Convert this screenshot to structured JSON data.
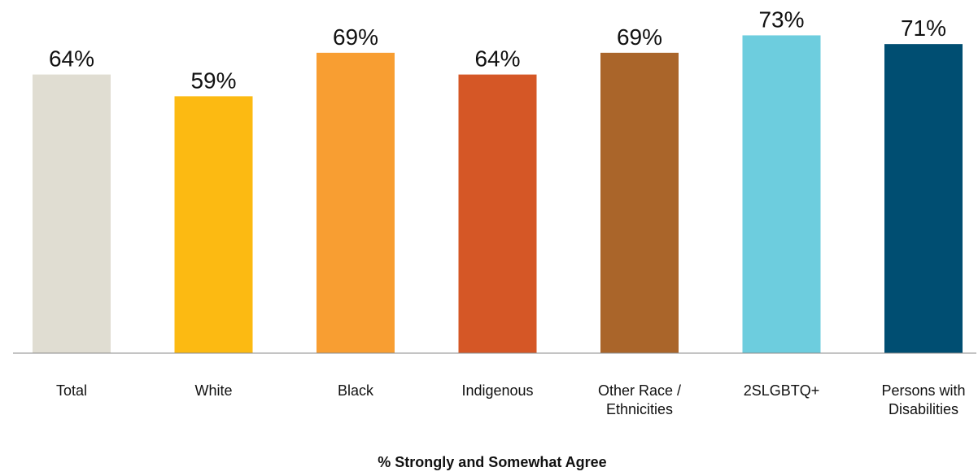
{
  "chart_data": {
    "type": "bar",
    "categories": [
      [
        "Total"
      ],
      [
        "White"
      ],
      [
        "Black"
      ],
      [
        "Indigenous"
      ],
      [
        "Other Race /",
        "Ethnicities"
      ],
      [
        "2SLGBTQ+"
      ],
      [
        "Persons with",
        "Disabilities"
      ]
    ],
    "values": [
      64,
      59,
      69,
      64,
      69,
      73,
      71
    ],
    "value_labels": [
      "64%",
      "59%",
      "69%",
      "64%",
      "69%",
      "73%",
      "71%"
    ],
    "colors": [
      "#E0DDD2",
      "#FCBA12",
      "#F89E32",
      "#D55726",
      "#AA652A",
      "#6DCDDE",
      "#004E72"
    ],
    "title": "",
    "xlabel": "% Strongly and Somewhat Agree",
    "ylabel": "",
    "ylim": [
      0,
      100
    ],
    "grid": false,
    "legend": "none"
  }
}
